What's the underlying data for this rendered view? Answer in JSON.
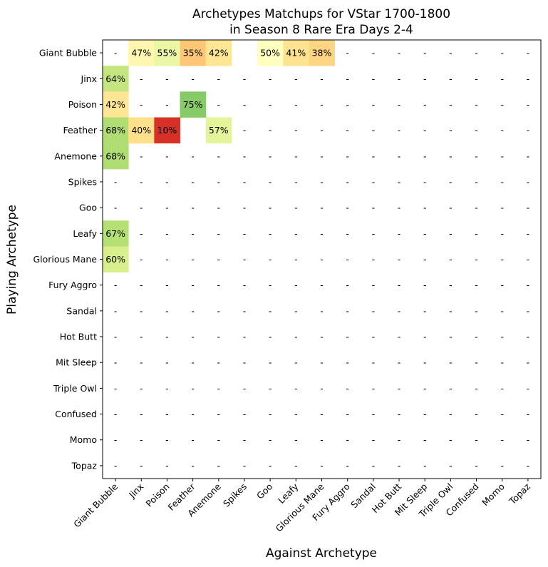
{
  "chart_data": {
    "type": "heatmap",
    "title": [
      "Archetypes Matchups for VStar 1700-1800",
      "in Season 8 Rare Era Days 2-4"
    ],
    "xlabel": "Against Archetype",
    "ylabel": "Playing Archetype",
    "x_categories": [
      "Giant Bubble",
      "Jinx",
      "Poison",
      "Feather",
      "Anemone",
      "Spikes",
      "Goo",
      "Leafy",
      "Glorious Mane",
      "Fury Aggro",
      "Sandal",
      "Hot Butt",
      "Mit Sleep",
      "Triple Owl",
      "Confused",
      "Momo",
      "Topaz"
    ],
    "y_categories": [
      "Giant Bubble",
      "Jinx",
      "Poison",
      "Feather",
      "Anemone",
      "Spikes",
      "Goo",
      "Leafy",
      "Glorious Mane",
      "Fury Aggro",
      "Sandal",
      "Hot Butt",
      "Mit Sleep",
      "Triple Owl",
      "Confused",
      "Momo",
      "Topaz"
    ],
    "missing_label": "-",
    "colormap": "RdYlGn",
    "color_range": [
      0,
      100
    ],
    "values": [
      [
        null,
        47,
        55,
        35,
        42,
        "",
        50,
        41,
        38,
        null,
        null,
        null,
        null,
        null,
        null,
        null,
        null
      ],
      [
        64,
        null,
        null,
        null,
        null,
        null,
        null,
        null,
        null,
        null,
        null,
        null,
        null,
        null,
        null,
        null,
        null
      ],
      [
        42,
        null,
        null,
        75,
        null,
        null,
        null,
        null,
        null,
        null,
        null,
        null,
        null,
        null,
        null,
        null,
        null
      ],
      [
        68,
        40,
        10,
        "",
        57,
        null,
        null,
        null,
        null,
        null,
        null,
        null,
        null,
        null,
        null,
        null,
        null
      ],
      [
        68,
        null,
        null,
        null,
        null,
        null,
        null,
        null,
        null,
        null,
        null,
        null,
        null,
        null,
        null,
        null,
        null
      ],
      [
        null,
        null,
        null,
        null,
        null,
        null,
        null,
        null,
        null,
        null,
        null,
        null,
        null,
        null,
        null,
        null,
        null
      ],
      [
        null,
        null,
        null,
        null,
        null,
        null,
        null,
        null,
        null,
        null,
        null,
        null,
        null,
        null,
        null,
        null,
        null
      ],
      [
        67,
        null,
        null,
        null,
        null,
        null,
        null,
        null,
        null,
        null,
        null,
        null,
        null,
        null,
        null,
        null,
        null
      ],
      [
        60,
        null,
        null,
        null,
        null,
        null,
        null,
        null,
        null,
        null,
        null,
        null,
        null,
        null,
        null,
        null,
        null
      ],
      [
        null,
        null,
        null,
        null,
        null,
        null,
        null,
        null,
        null,
        null,
        null,
        null,
        null,
        null,
        null,
        null,
        null
      ],
      [
        null,
        null,
        null,
        null,
        null,
        null,
        null,
        null,
        null,
        null,
        null,
        null,
        null,
        null,
        null,
        null,
        null
      ],
      [
        null,
        null,
        null,
        null,
        null,
        null,
        null,
        null,
        null,
        null,
        null,
        null,
        null,
        null,
        null,
        null,
        null
      ],
      [
        null,
        null,
        null,
        null,
        null,
        null,
        null,
        null,
        null,
        null,
        null,
        null,
        null,
        null,
        null,
        null,
        null
      ],
      [
        null,
        null,
        null,
        null,
        null,
        null,
        null,
        null,
        null,
        null,
        null,
        null,
        null,
        null,
        null,
        null,
        null
      ],
      [
        null,
        null,
        null,
        null,
        null,
        null,
        null,
        null,
        null,
        null,
        null,
        null,
        null,
        null,
        null,
        null,
        null
      ],
      [
        null,
        null,
        null,
        null,
        null,
        null,
        null,
        null,
        null,
        null,
        null,
        null,
        null,
        null,
        null,
        null,
        null
      ],
      [
        null,
        null,
        null,
        null,
        null,
        null,
        null,
        null,
        null,
        null,
        null,
        null,
        null,
        null,
        null,
        null,
        null
      ]
    ]
  }
}
